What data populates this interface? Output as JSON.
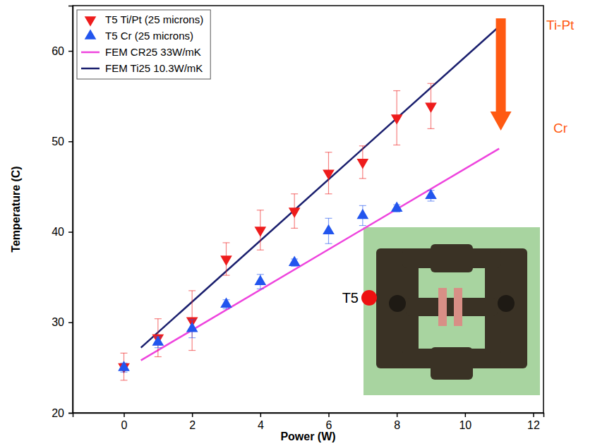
{
  "chart_data": {
    "type": "scatter",
    "x_label": "Power (W)",
    "y_label": "Temperature (C)",
    "xlim": [
      -1.5,
      12.3
    ],
    "xticks": [
      0,
      2,
      4,
      6,
      8,
      10,
      12
    ],
    "ylim": [
      20,
      65
    ],
    "yticks": [
      20,
      30,
      40,
      50,
      60
    ],
    "legend": "upper left",
    "series": [
      {
        "name": "T5 Ti/Pt (25 microns)",
        "type": "scatter",
        "marker": "triangle-down",
        "color": "#ee1c1c",
        "x": [
          0,
          1,
          2,
          3,
          4,
          5,
          6,
          7,
          8,
          9
        ],
        "values": [
          25.1,
          28.3,
          30.2,
          37.0,
          40.2,
          42.3,
          46.5,
          47.7,
          52.6,
          53.9
        ],
        "errors": [
          1.5,
          2.1,
          3.3,
          1.8,
          2.2,
          1.9,
          2.3,
          1.8,
          3.0,
          2.5
        ]
      },
      {
        "name": "T5 Cr (25 microns)",
        "type": "scatter",
        "marker": "triangle-up",
        "color": "#2255ee",
        "x": [
          0,
          1,
          2,
          3,
          4,
          5,
          6,
          7,
          8,
          9
        ],
        "values": [
          25.0,
          27.8,
          29.3,
          32.0,
          34.5,
          36.6,
          40.1,
          41.8,
          42.6,
          44.0
        ],
        "errors": [
          0.5,
          0.6,
          1.0,
          0.5,
          0.8,
          0.4,
          1.4,
          1.1,
          0.4,
          0.6
        ]
      },
      {
        "name": "FEM CR25 33W/mK",
        "type": "line",
        "color": "#ee44dd",
        "x": [
          0.5,
          11
        ],
        "values": [
          25.8,
          49.2
        ]
      },
      {
        "name": "FEM Ti25 10.3W/mK",
        "type": "line",
        "color": "#1a1f6e",
        "x": [
          0.5,
          11
        ],
        "values": [
          27.2,
          62.7
        ]
      }
    ],
    "annotations": [
      "Ti-Pt",
      "Cr"
    ],
    "inset_label": "T5"
  }
}
